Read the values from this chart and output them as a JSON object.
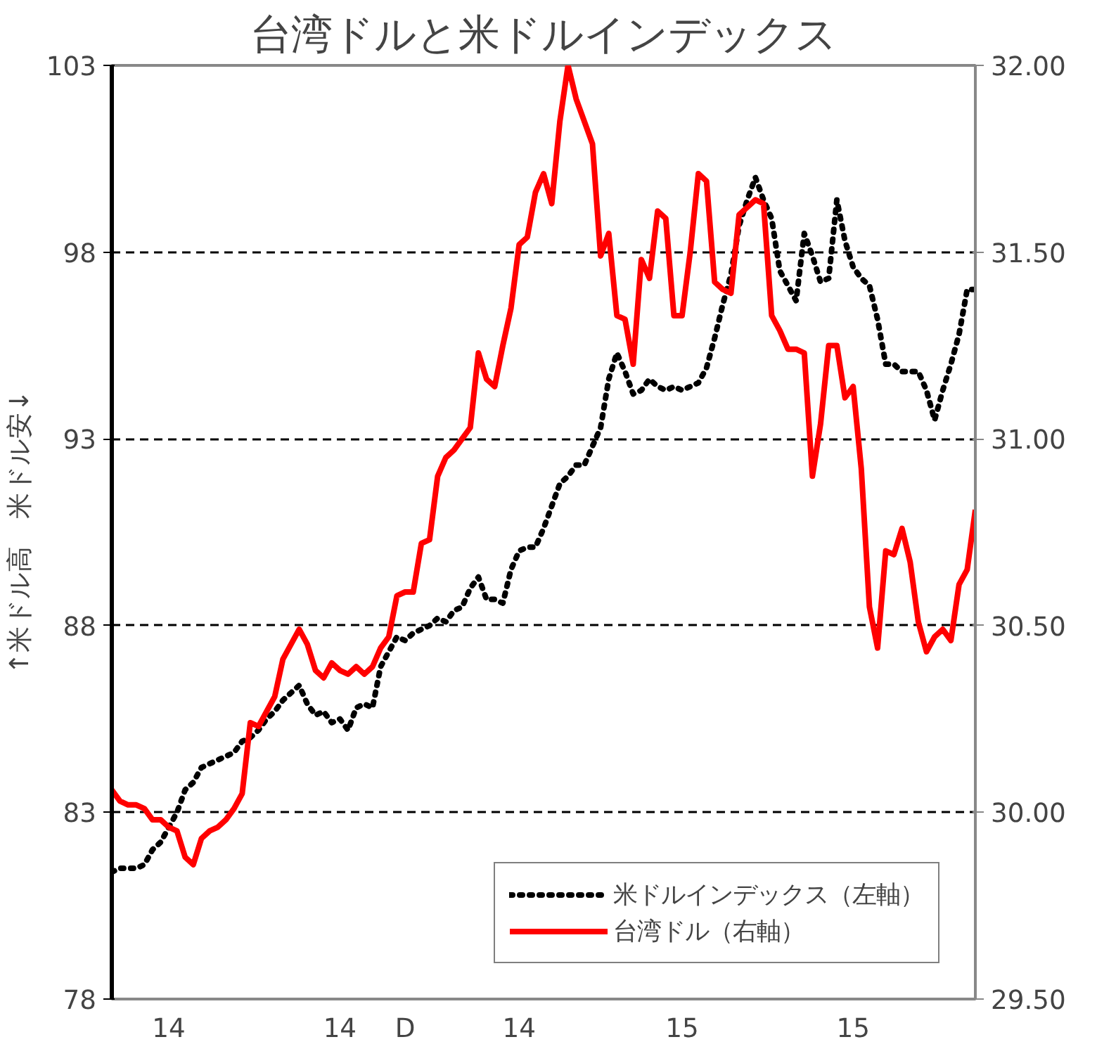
{
  "chart_data": {
    "type": "line",
    "title": "台湾ドルと米ドルインデックス",
    "ylabel": "↑米ドル高　米ドル安↓",
    "categories": [
      null,
      null,
      null,
      null,
      null,
      null,
      null,
      "14",
      null,
      null,
      null,
      null,
      null,
      null,
      null,
      null,
      null,
      null,
      null,
      null,
      null,
      null,
      null,
      null,
      null,
      null,
      null,
      null,
      "14",
      null,
      null,
      null,
      null,
      null,
      null,
      null,
      "D",
      null,
      null,
      null,
      null,
      null,
      null,
      null,
      null,
      null,
      null,
      null,
      null,
      null,
      "14",
      null,
      null,
      null,
      null,
      null,
      null,
      null,
      null,
      null,
      null,
      null,
      null,
      null,
      null,
      null,
      null,
      null,
      null,
      null,
      "15",
      null,
      null,
      null,
      null,
      null,
      null,
      null,
      null,
      null,
      null,
      null,
      null,
      null,
      null,
      null,
      null,
      null,
      null,
      null,
      null,
      "15",
      null,
      null,
      null,
      null,
      null,
      null,
      null,
      null,
      null,
      null,
      null,
      null,
      null,
      null,
      null
    ],
    "ylim": [
      78,
      103
    ],
    "yticks": [
      78,
      83,
      88,
      93,
      98,
      103
    ],
    "y2lim": [
      29.5,
      32.0
    ],
    "y2ticks": [
      {
        "value": 29.5,
        "label": "29.50"
      },
      {
        "value": 30.0,
        "label": "30.00"
      },
      {
        "value": 30.5,
        "label": "30.50"
      },
      {
        "value": 31.0,
        "label": "31.00"
      },
      {
        "value": 31.5,
        "label": "31.50"
      },
      {
        "value": 32.0,
        "label": "32.00"
      }
    ],
    "grid": "y",
    "legend": "bottom right",
    "series": [
      {
        "name": "米ドルインデックス（左軸）",
        "color": "#000000",
        "line_style": "dotted",
        "axis": "y",
        "values": [
          81.4,
          81.5,
          81.5,
          81.5,
          81.6,
          82.0,
          82.2,
          82.6,
          83.0,
          83.6,
          83.8,
          84.2,
          84.3,
          84.4,
          84.5,
          84.6,
          84.9,
          85.0,
          85.2,
          85.5,
          85.7,
          86.0,
          86.2,
          86.4,
          85.9,
          85.6,
          85.7,
          85.4,
          85.5,
          85.2,
          85.8,
          85.9,
          85.8,
          86.9,
          87.3,
          87.7,
          87.6,
          87.8,
          87.9,
          88.0,
          88.2,
          88.1,
          88.4,
          88.5,
          89.0,
          89.3,
          88.7,
          88.7,
          88.6,
          89.5,
          90.0,
          90.1,
          90.1,
          90.6,
          91.2,
          91.8,
          92.0,
          92.3,
          92.3,
          92.8,
          93.3,
          94.6,
          95.3,
          94.8,
          94.2,
          94.3,
          94.6,
          94.4,
          94.3,
          94.4,
          94.3,
          94.4,
          94.5,
          94.9,
          95.7,
          96.6,
          97.4,
          98.7,
          99.4,
          100.0,
          99.4,
          98.9,
          97.5,
          97.1,
          96.7,
          98.5,
          97.9,
          97.2,
          97.3,
          99.4,
          98.3,
          97.6,
          97.3,
          97.1,
          96.2,
          95.0,
          95.0,
          94.8,
          94.8,
          94.8,
          94.3,
          93.5,
          94.3,
          95.0,
          95.8,
          97.0,
          97.0
        ]
      },
      {
        "name": "台湾ドル（右軸）",
        "color": "#ff0000",
        "line_style": "solid",
        "axis": "y2",
        "values": [
          30.06,
          30.03,
          30.02,
          30.02,
          30.01,
          29.98,
          29.98,
          29.96,
          29.95,
          29.88,
          29.86,
          29.93,
          29.95,
          29.96,
          29.98,
          30.01,
          30.05,
          30.24,
          30.23,
          30.27,
          30.31,
          30.41,
          30.45,
          30.49,
          30.45,
          30.38,
          30.36,
          30.4,
          30.38,
          30.37,
          30.39,
          30.37,
          30.39,
          30.44,
          30.47,
          30.58,
          30.59,
          30.59,
          30.72,
          30.73,
          30.9,
          30.95,
          30.97,
          31.0,
          31.03,
          31.23,
          31.16,
          31.14,
          31.25,
          31.35,
          31.52,
          31.54,
          31.66,
          31.71,
          31.63,
          31.85,
          32.0,
          31.91,
          31.85,
          31.79,
          31.49,
          31.55,
          31.33,
          31.32,
          31.2,
          31.48,
          31.43,
          31.61,
          31.59,
          31.33,
          31.33,
          31.5,
          31.71,
          31.69,
          31.42,
          31.4,
          31.39,
          31.6,
          31.62,
          31.64,
          31.63,
          31.33,
          31.29,
          31.24,
          31.24,
          31.23,
          30.9,
          31.04,
          31.25,
          31.25,
          31.11,
          31.14,
          30.92,
          30.55,
          30.44,
          30.7,
          30.69,
          30.76,
          30.67,
          30.51,
          30.43,
          30.47,
          30.49,
          30.46,
          30.61,
          30.65,
          30.81
        ]
      }
    ]
  }
}
